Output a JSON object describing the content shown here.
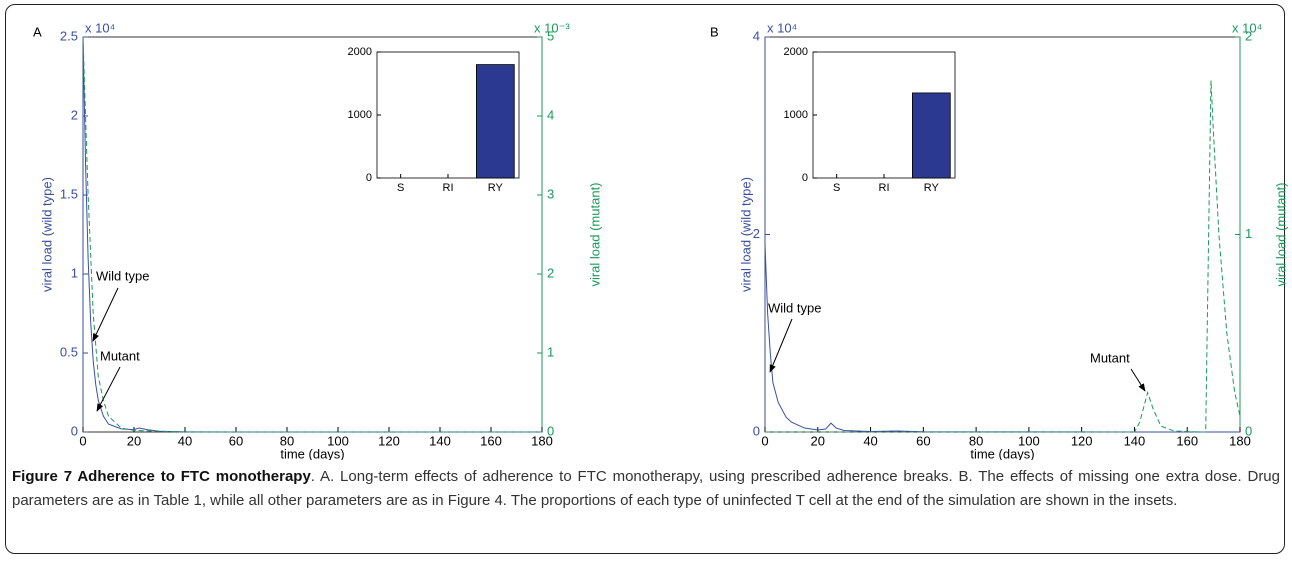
{
  "chart_data": [
    {
      "type": "line",
      "panel": "A",
      "xlabel": "time (days)",
      "ylabel": "viral load (wild type)",
      "y2label": "viral load (mutant)",
      "y_scale_label": "x 10⁴",
      "y2_scale_label": "x 10⁻³",
      "xlim": [
        0,
        180
      ],
      "xticks": [
        0,
        20,
        40,
        60,
        80,
        100,
        120,
        140,
        160,
        180
      ],
      "ylim": [
        0,
        25000
      ],
      "yticks": [
        0,
        {
          "value": 5000,
          "label": "0.5"
        },
        {
          "value": 10000,
          "label": "1"
        },
        {
          "value": 15000,
          "label": "1.5"
        },
        {
          "value": 20000,
          "label": "2"
        },
        {
          "value": 25000,
          "label": "2.5"
        }
      ],
      "y2lim": [
        0,
        0.005
      ],
      "y2ticks": [
        0,
        {
          "value": 0.001,
          "label": "1"
        },
        {
          "value": 0.002,
          "label": "2"
        },
        {
          "value": 0.003,
          "label": "3"
        },
        {
          "value": 0.004,
          "label": "4"
        },
        {
          "value": 0.005,
          "label": "5"
        }
      ],
      "series": [
        {
          "color": "#3a4fa0",
          "dashed": false,
          "x": [
            0,
            1,
            2,
            3,
            4,
            5,
            6,
            8,
            10,
            15,
            20,
            22,
            25,
            30,
            40,
            60,
            180
          ],
          "values": [
            25000,
            17000,
            11000,
            7000,
            4500,
            3000,
            2000,
            1000,
            500,
            200,
            150,
            250,
            150,
            50,
            10,
            0,
            0
          ]
        },
        {
          "color": "#1a9a5a",
          "dashed": true,
          "axis": "y2",
          "x": [
            0,
            2,
            4,
            6,
            8,
            10,
            15,
            20,
            40,
            180
          ],
          "values": [
            0.005,
            0.003,
            0.0015,
            0.0007,
            0.0004,
            0.0002,
            5e-05,
            2e-05,
            0,
            0
          ]
        }
      ],
      "annotations": [
        "Wild type",
        "Mutant"
      ],
      "inset": {
        "type": "bar",
        "categories": [
          "S",
          "RI",
          "RY"
        ],
        "values": [
          0,
          0,
          1800
        ],
        "ylim": [
          0,
          2000
        ],
        "yticks": [
          0,
          1000,
          2000
        ],
        "color": "#2b3990"
      }
    },
    {
      "type": "line",
      "panel": "B",
      "xlabel": "time (days)",
      "ylabel": "viral load (wild type)",
      "y2label": "viral load (mutant)",
      "y_scale_label": "x 10⁴",
      "y2_scale_label": "x 10⁴",
      "xlim": [
        0,
        180
      ],
      "xticks": [
        0,
        20,
        40,
        60,
        80,
        100,
        120,
        140,
        160,
        180
      ],
      "ylim": [
        0,
        40000
      ],
      "yticks": [
        0,
        {
          "value": 20000,
          "label": "2"
        },
        {
          "value": 40000,
          "label": "4"
        }
      ],
      "y2lim": [
        0,
        20000
      ],
      "y2ticks": [
        0,
        {
          "value": 10000,
          "label": "1"
        },
        {
          "value": 20000,
          "label": "2"
        }
      ],
      "series": [
        {
          "color": "#3a4fa0",
          "dashed": false,
          "x": [
            0,
            1,
            2,
            3,
            5,
            8,
            10,
            15,
            20,
            23,
            25,
            27,
            30,
            40,
            50,
            60,
            180
          ],
          "values": [
            19000,
            12000,
            8000,
            5000,
            3000,
            1500,
            1000,
            400,
            200,
            300,
            900,
            400,
            150,
            50,
            100,
            20,
            0
          ]
        },
        {
          "color": "#1a9a5a",
          "dashed": true,
          "axis": "y2",
          "x": [
            0,
            140,
            142,
            145,
            147,
            150,
            155,
            165,
            167,
            168,
            169,
            170,
            172,
            175,
            178,
            180
          ],
          "values": [
            0,
            0,
            500,
            2000,
            1200,
            300,
            50,
            0,
            0,
            9000,
            17800,
            15000,
            10000,
            5000,
            2000,
            800
          ]
        }
      ],
      "annotations": [
        "Wild type",
        "Mutant"
      ],
      "inset": {
        "type": "bar",
        "categories": [
          "S",
          "RI",
          "RY"
        ],
        "values": [
          0,
          0,
          1350
        ],
        "ylim": [
          0,
          2000
        ],
        "yticks": [
          0,
          1000,
          2000
        ],
        "color": "#2b3990"
      }
    }
  ],
  "caption": {
    "title": "Figure 7 Adherence to FTC monotherapy",
    "body": ". A. Long-term effects of adherence to FTC monotherapy, using prescribed adherence breaks. B. The effects of missing one extra dose. Drug parameters are as in Table 1, while all other parameters are as in Figure 4. The proportions of each type of uninfected T cell at the end of the simulation are shown in the insets."
  }
}
